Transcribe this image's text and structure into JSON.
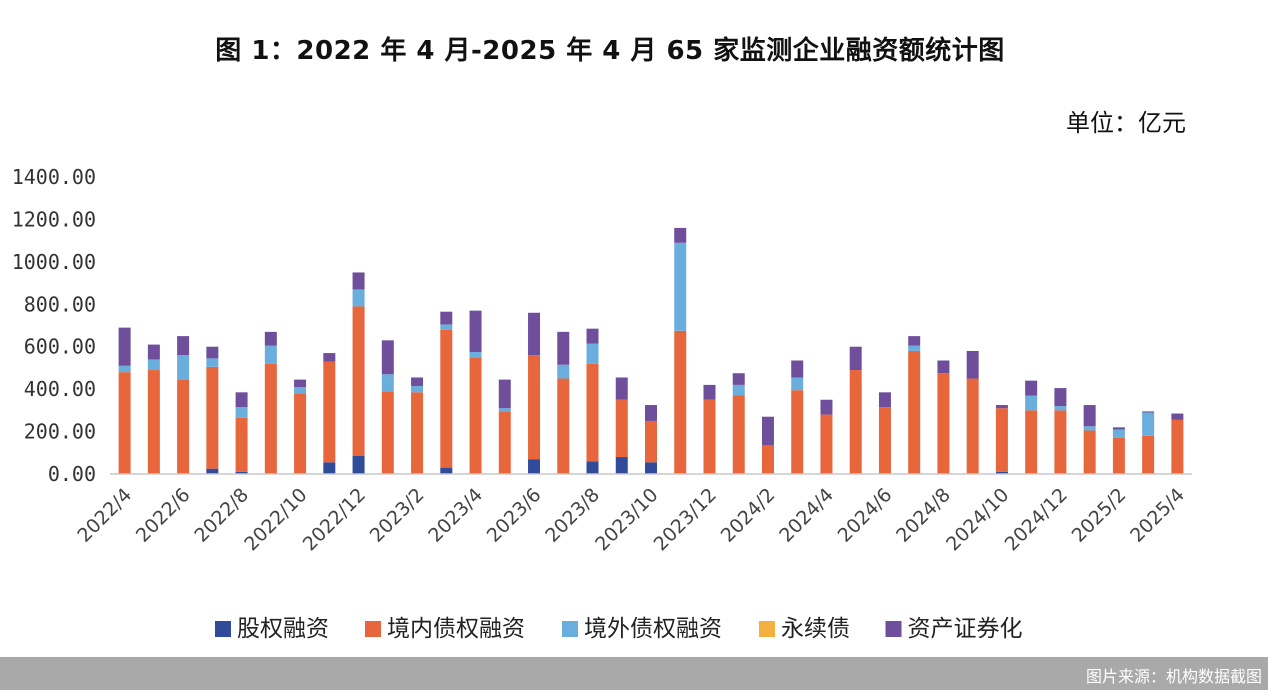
{
  "chart_data": {
    "type": "bar",
    "stacked": true,
    "title": "图 1：2022 年 4 月-2025 年 4 月 65 家监测企业融资额统计图",
    "unit": "单位：亿元",
    "ylim": [
      0,
      1400
    ],
    "yticks": [
      "0.00",
      "200.00",
      "400.00",
      "600.00",
      "800.00",
      "1000.00",
      "1200.00",
      "1400.00"
    ],
    "ytick_values": [
      0,
      200,
      400,
      600,
      800,
      1000,
      1200,
      1400
    ],
    "categories": [
      "2022/4",
      "2022/5",
      "2022/6",
      "2022/7",
      "2022/8",
      "2022/9",
      "2022/10",
      "2022/11",
      "2022/12",
      "2023/1",
      "2023/2",
      "2023/3",
      "2023/4",
      "2023/5",
      "2023/6",
      "2023/7",
      "2023/8",
      "2023/9",
      "2023/10",
      "2023/11",
      "2023/12",
      "2024/1",
      "2024/2",
      "2024/3",
      "2024/4",
      "2024/5",
      "2024/6",
      "2024/7",
      "2024/8",
      "2024/9",
      "2024/10",
      "2024/11",
      "2024/12",
      "2025/1",
      "2025/2",
      "2025/3",
      "2025/4"
    ],
    "xtick_labels": [
      "2022/4",
      "2022/6",
      "2022/8",
      "2022/10",
      "2022/12",
      "2023/2",
      "2023/4",
      "2023/6",
      "2023/8",
      "2023/10",
      "2023/12",
      "2024/2",
      "2024/4",
      "2024/6",
      "2024/8",
      "2024/10",
      "2024/12",
      "2025/2",
      "2025/4"
    ],
    "series": [
      {
        "name": "股权融资",
        "color": "#2f4b9a",
        "values": [
          0,
          0,
          0,
          25,
          10,
          0,
          0,
          55,
          85,
          0,
          0,
          30,
          0,
          0,
          70,
          0,
          60,
          80,
          55,
          0,
          0,
          0,
          0,
          0,
          0,
          0,
          0,
          0,
          0,
          0,
          10,
          0,
          0,
          0,
          0,
          0,
          0
        ]
      },
      {
        "name": "境内债权融资",
        "color": "#e8663c",
        "values": [
          480,
          490,
          445,
          480,
          255,
          520,
          380,
          475,
          705,
          390,
          385,
          650,
          550,
          295,
          490,
          450,
          460,
          270,
          195,
          675,
          350,
          370,
          135,
          395,
          280,
          490,
          315,
          580,
          475,
          450,
          300,
          300,
          300,
          205,
          170,
          180,
          255
        ]
      },
      {
        "name": "境外债权融资",
        "color": "#6aaede",
        "values": [
          30,
          50,
          115,
          40,
          50,
          85,
          30,
          0,
          80,
          80,
          30,
          25,
          25,
          15,
          0,
          65,
          95,
          0,
          0,
          415,
          0,
          50,
          0,
          60,
          0,
          0,
          0,
          25,
          0,
          0,
          0,
          70,
          20,
          20,
          40,
          110,
          0
        ]
      },
      {
        "name": "永续债",
        "color": "#f4b03e",
        "values": [
          0,
          0,
          0,
          0,
          0,
          0,
          0,
          0,
          0,
          0,
          0,
          0,
          0,
          0,
          0,
          0,
          0,
          0,
          0,
          0,
          0,
          0,
          0,
          0,
          0,
          0,
          0,
          0,
          0,
          0,
          0,
          0,
          0,
          0,
          0,
          0,
          0
        ]
      },
      {
        "name": "资产证券化",
        "color": "#6f4f9b",
        "values": [
          180,
          70,
          90,
          55,
          70,
          65,
          35,
          40,
          80,
          160,
          40,
          60,
          195,
          135,
          200,
          155,
          70,
          105,
          75,
          70,
          70,
          55,
          135,
          80,
          70,
          110,
          70,
          45,
          60,
          130,
          15,
          70,
          85,
          100,
          10,
          5,
          30
        ]
      }
    ]
  },
  "footer": {
    "source": "图片来源：机构数据截图"
  }
}
